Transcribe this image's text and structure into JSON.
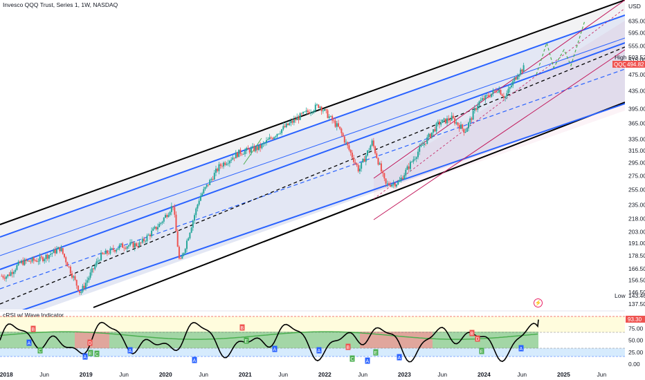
{
  "header": {
    "title": "Invesco QQQ Trust, Series 1, 1W, NASDAQ",
    "indicator_title": "cRSI w/ Wave Indicator",
    "currency": "USD"
  },
  "price_labels": {
    "high_label": "High",
    "high_value": "503.52",
    "symbol": "QQQ",
    "last_value": "494.82",
    "low_label": "Low",
    "low_value": "143.46",
    "indicator_value": "93.30"
  },
  "colors": {
    "up": "#26a69a",
    "down": "#ef5350",
    "channel": "#2962ff",
    "outer": "#000000",
    "magenta": "#c2185b",
    "wave": "#4caf50",
    "crsi_line": "#000000"
  },
  "chart_data": [
    {
      "type": "line",
      "title": "Invesco QQQ Trust, Series 1, 1W, NASDAQ",
      "y_scale": "log",
      "ylim": [
        135,
        690
      ],
      "y_ticks": [
        "635.00",
        "595.00",
        "555.00",
        "515.00",
        "475.00",
        "435.00",
        "395.00",
        "365.00",
        "335.00",
        "315.00",
        "295.00",
        "275.00",
        "255.00",
        "235.00",
        "218.00",
        "203.00",
        "191.00",
        "178.50",
        "166.50",
        "156.50",
        "146.50",
        "137.50"
      ],
      "x_ticks": [
        "2018",
        "Jun",
        "2019",
        "Jun",
        "2020",
        "Jun",
        "2021",
        "Jun",
        "2022",
        "Jun",
        "2023",
        "Jun",
        "2024",
        "Jun",
        "2025",
        "Jun"
      ],
      "series": [
        {
          "values_approx": [
            {
              "x": "2018-01",
              "y": 160
            },
            {
              "x": "2018-03",
              "y": 172
            },
            {
              "x": "2018-06",
              "y": 175
            },
            {
              "x": "2018-09",
              "y": 186
            },
            {
              "x": "2018-12",
              "y": 146
            },
            {
              "x": "2019-03",
              "y": 178
            },
            {
              "x": "2019-06",
              "y": 188
            },
            {
              "x": "2019-09",
              "y": 190
            },
            {
              "x": "2019-12",
              "y": 212
            },
            {
              "x": "2020-02",
              "y": 235
            },
            {
              "x": "2020-03",
              "y": 170
            },
            {
              "x": "2020-06",
              "y": 245
            },
            {
              "x": "2020-09",
              "y": 290
            },
            {
              "x": "2020-12",
              "y": 312
            },
            {
              "x": "2021-03",
              "y": 320
            },
            {
              "x": "2021-06",
              "y": 350
            },
            {
              "x": "2021-09",
              "y": 378
            },
            {
              "x": "2021-12",
              "y": 403
            },
            {
              "x": "2022-03",
              "y": 355
            },
            {
              "x": "2022-06",
              "y": 283
            },
            {
              "x": "2022-08",
              "y": 330
            },
            {
              "x": "2022-10",
              "y": 262
            },
            {
              "x": "2022-12",
              "y": 265
            },
            {
              "x": "2023-03",
              "y": 315
            },
            {
              "x": "2023-06",
              "y": 365
            },
            {
              "x": "2023-08",
              "y": 375
            },
            {
              "x": "2023-10",
              "y": 350
            },
            {
              "x": "2023-12",
              "y": 408
            },
            {
              "x": "2024-03",
              "y": 440
            },
            {
              "x": "2024-04",
              "y": 420
            },
            {
              "x": "2024-06",
              "y": 480
            },
            {
              "x": "2024-07",
              "y": 494.82
            }
          ]
        }
      ],
      "annotations": [
        "High 503.52",
        "QQQ 494.82",
        "Low 143.46"
      ]
    },
    {
      "type": "line",
      "title": "cRSI w/ Wave Indicator",
      "ylim": [
        0,
        100
      ],
      "y_ticks": [
        "75.00",
        "50.00",
        "25.00",
        "0.00"
      ],
      "last_value": 93.3,
      "markers": [
        "A",
        "B",
        "C",
        "D",
        "E"
      ]
    }
  ]
}
